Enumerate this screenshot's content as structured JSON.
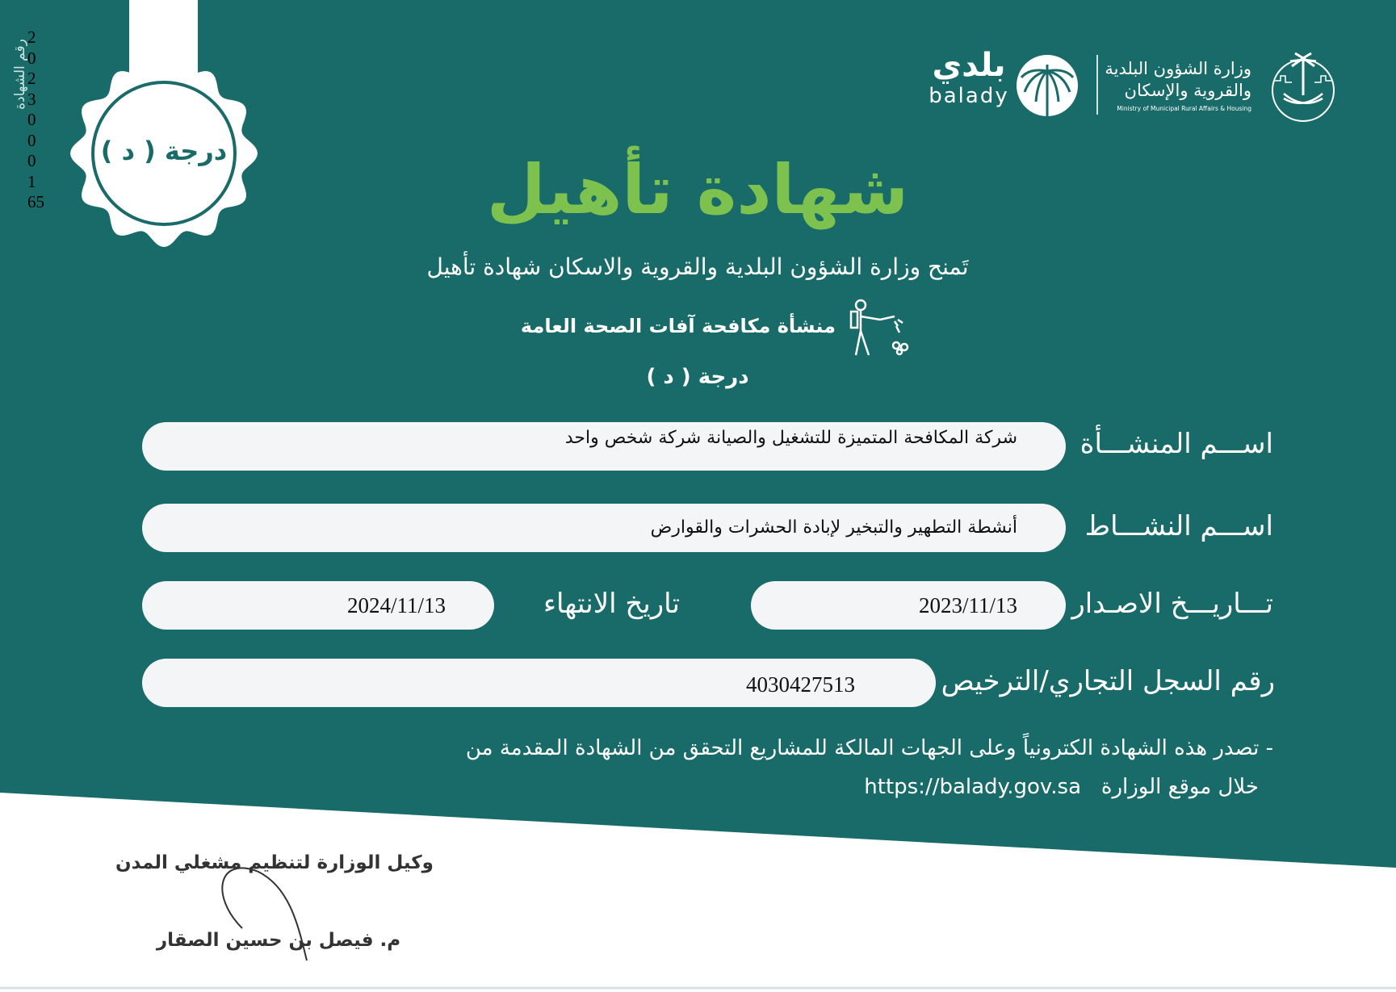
{
  "colors": {
    "teal": "#196b69",
    "title_green": "#7dc24f",
    "field_bg": "#f4f5f6"
  },
  "certificate_number": {
    "label": "رقم الشهادة",
    "digits": [
      "2",
      "0",
      "2",
      "3",
      "0",
      "0",
      "0",
      "1",
      "65"
    ]
  },
  "seal": {
    "grade": "درجة ( د )"
  },
  "logos": {
    "balady_ar": "بلدي",
    "balady_en": "balady",
    "ministry_ar_line1": "وزارة الشؤون البلدية",
    "ministry_ar_line2": "والقروية والإسكان",
    "ministry_en": "Ministry of Municipal Rural Affairs & Housing"
  },
  "title": "شهادة تأهيل",
  "subtitle": "تَمنح وزارة الشؤون البلدية والقروية والاسكان شهادة تأهيل",
  "category": {
    "text": "منشأة مكافحة آفات الصحة العامة",
    "icon": "pest-sprayer-icon"
  },
  "grade": "درجة ( د )",
  "fields": {
    "entity_label": "اســـم المنشـــأة",
    "entity_value": "شركة المكافحة المتميزة للتشغيل والصيانة شركة شخص واحد",
    "activity_label": "اســـم النشـــاط",
    "activity_value": "أنشطة التطهير والتبخير لإبادة الحشرات والقوارض",
    "issue_label": "تـــاريـــخ الاصـدار",
    "issue_value": "2023/11/13",
    "expiry_label": "تاريخ الانتهاء",
    "expiry_value": "2024/11/13",
    "cr_label": "رقم السجل التجاري/الترخيص",
    "cr_value": "4030427513"
  },
  "note": {
    "line1": "- تصدر هذه الشهادة الكترونياً وعلى الجهات المالكة للمشاريع التحقق من الشهادة المقدمة من",
    "line2_text": "خلال موقع الوزارة",
    "line2_url": "https://balady.gov.sa"
  },
  "signature": {
    "title": "وكيل الوزارة لتنظيم مشغلي المدن",
    "name": "م. فيصل بن حسين الصقار"
  }
}
